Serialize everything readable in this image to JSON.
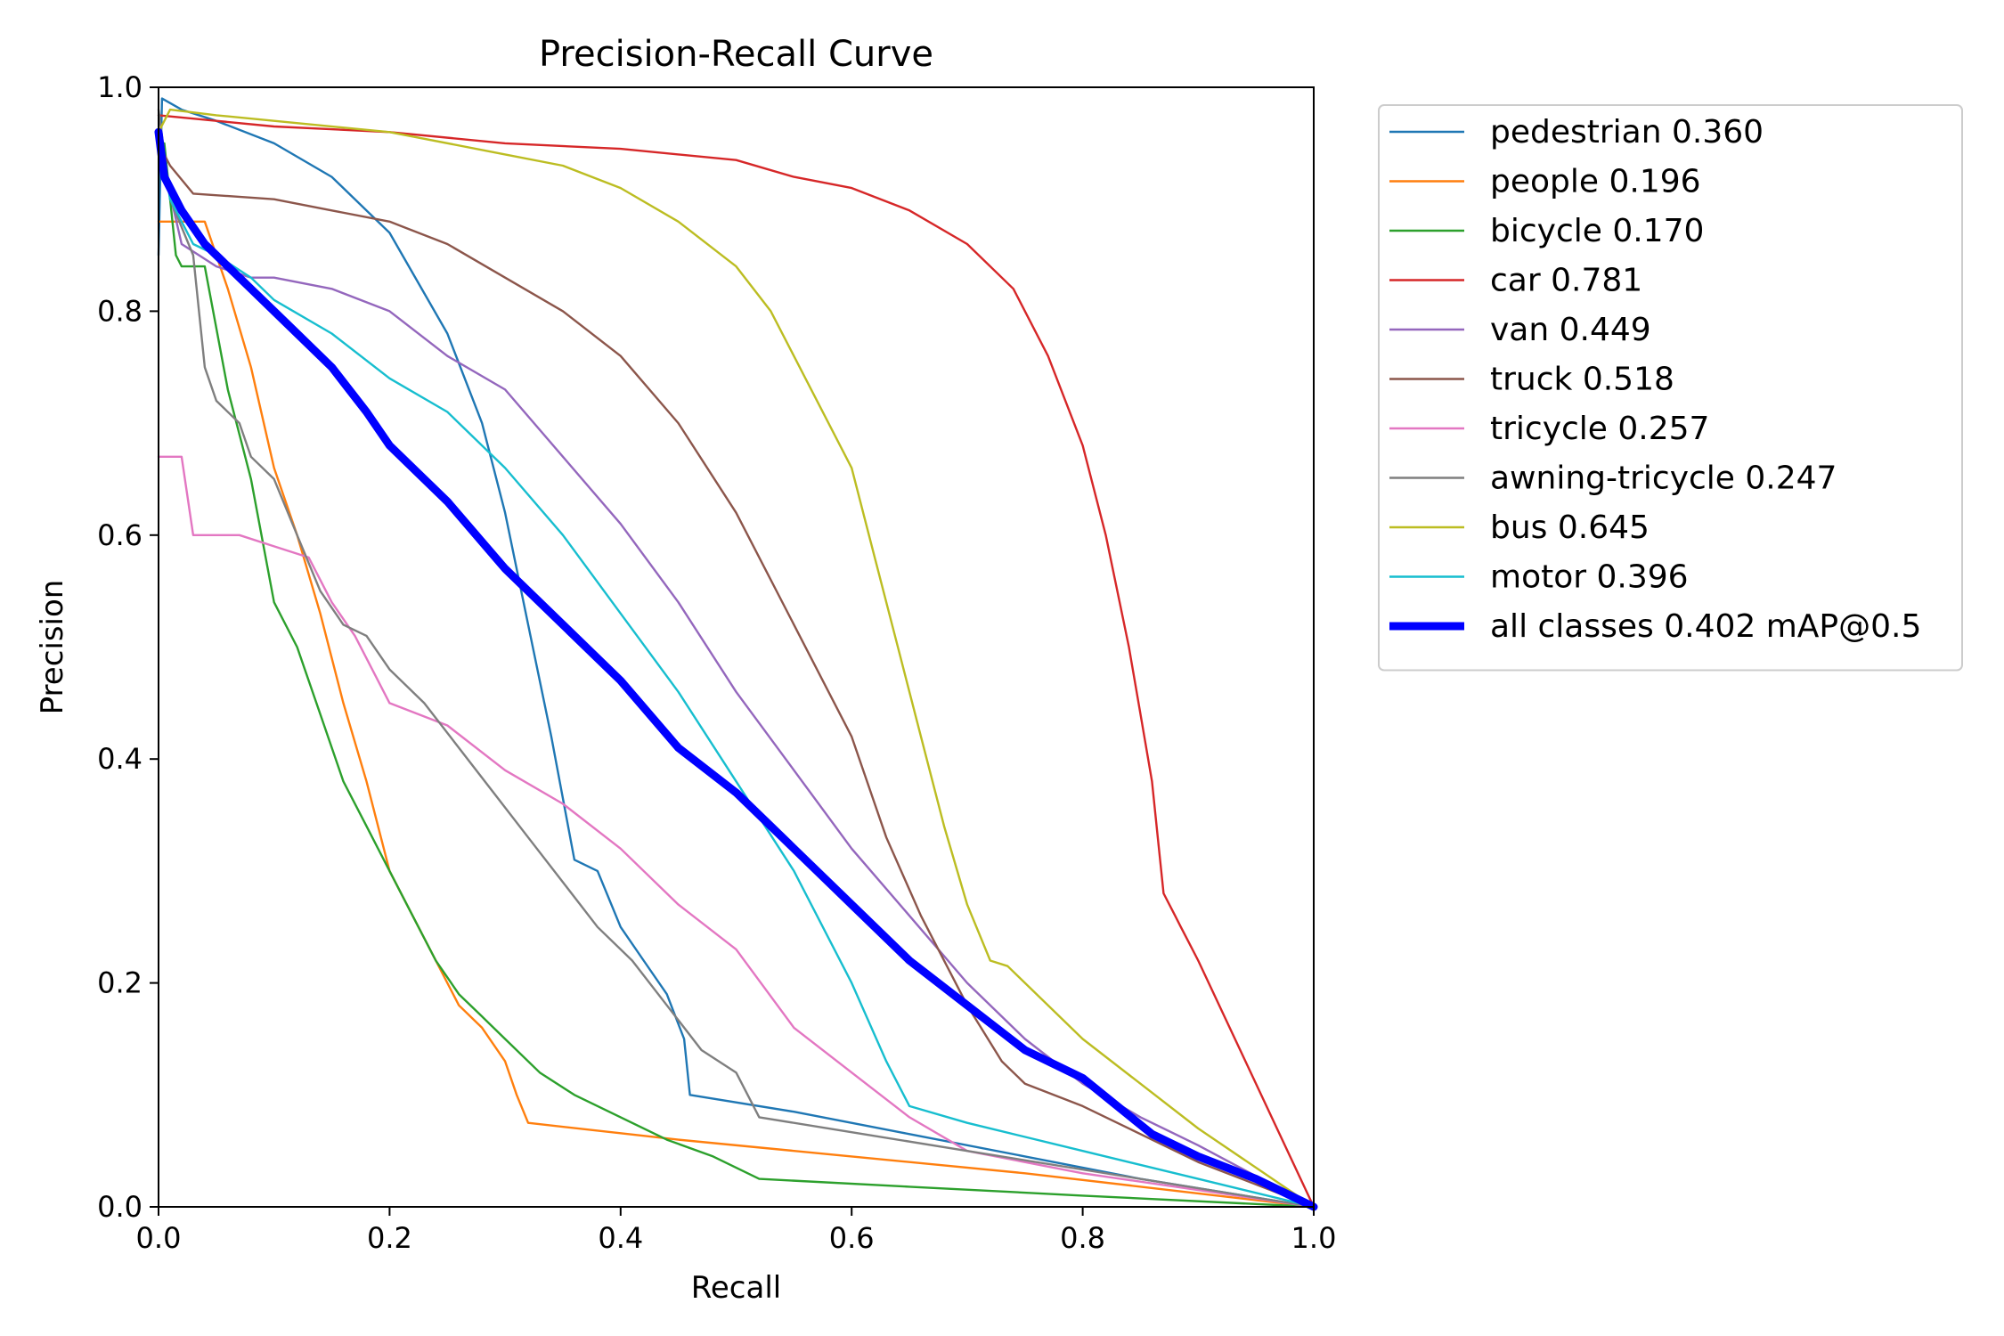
{
  "chart_data": {
    "type": "line",
    "title": "Precision-Recall Curve",
    "xlabel": "Recall",
    "ylabel": "Precision",
    "xlim": [
      0.0,
      1.0
    ],
    "ylim": [
      0.0,
      1.0
    ],
    "xticks": [
      "0.0",
      "0.2",
      "0.4",
      "0.6",
      "0.8",
      "1.0"
    ],
    "yticks": [
      "0.0",
      "0.2",
      "0.4",
      "0.6",
      "0.8",
      "1.0"
    ],
    "grid": false,
    "legend_position": "outside-right-top",
    "series": [
      {
        "name": "pedestrian 0.360",
        "label": "pedestrian 0.360",
        "color": "#1f77b4",
        "bold": false,
        "x": [
          0.0,
          0.003,
          0.02,
          0.05,
          0.1,
          0.15,
          0.2,
          0.25,
          0.28,
          0.3,
          0.32,
          0.34,
          0.36,
          0.38,
          0.4,
          0.42,
          0.44,
          0.455,
          0.46,
          0.55,
          0.65,
          0.75,
          0.85,
          1.0
        ],
        "y": [
          0.85,
          0.99,
          0.98,
          0.97,
          0.95,
          0.92,
          0.87,
          0.78,
          0.7,
          0.62,
          0.52,
          0.42,
          0.31,
          0.3,
          0.25,
          0.22,
          0.19,
          0.15,
          0.1,
          0.085,
          0.065,
          0.045,
          0.025,
          0.0
        ]
      },
      {
        "name": "people 0.196",
        "label": "people 0.196",
        "color": "#ff7f0e",
        "bold": false,
        "x": [
          0.0,
          0.01,
          0.04,
          0.06,
          0.08,
          0.1,
          0.12,
          0.14,
          0.16,
          0.18,
          0.2,
          0.22,
          0.24,
          0.26,
          0.28,
          0.3,
          0.31,
          0.32,
          0.45,
          0.6,
          0.75,
          0.9,
          1.0
        ],
        "y": [
          0.88,
          0.88,
          0.88,
          0.82,
          0.75,
          0.66,
          0.6,
          0.53,
          0.45,
          0.38,
          0.3,
          0.26,
          0.22,
          0.18,
          0.16,
          0.13,
          0.1,
          0.075,
          0.06,
          0.045,
          0.03,
          0.012,
          0.0
        ]
      },
      {
        "name": "bicycle 0.170",
        "label": "bicycle 0.170",
        "color": "#2ca02c",
        "bold": false,
        "x": [
          0.0,
          0.005,
          0.015,
          0.02,
          0.04,
          0.06,
          0.08,
          0.1,
          0.12,
          0.14,
          0.16,
          0.18,
          0.2,
          0.22,
          0.24,
          0.26,
          0.28,
          0.3,
          0.33,
          0.36,
          0.4,
          0.44,
          0.48,
          0.52,
          0.65,
          0.8,
          1.0
        ],
        "y": [
          0.95,
          0.95,
          0.85,
          0.84,
          0.84,
          0.73,
          0.65,
          0.54,
          0.5,
          0.44,
          0.38,
          0.34,
          0.3,
          0.26,
          0.22,
          0.19,
          0.17,
          0.15,
          0.12,
          0.1,
          0.08,
          0.06,
          0.045,
          0.025,
          0.018,
          0.01,
          0.0
        ]
      },
      {
        "name": "car 0.781",
        "label": "car 0.781",
        "color": "#d62728",
        "bold": false,
        "x": [
          0.0,
          0.05,
          0.1,
          0.2,
          0.3,
          0.4,
          0.5,
          0.55,
          0.6,
          0.65,
          0.7,
          0.74,
          0.77,
          0.8,
          0.82,
          0.84,
          0.85,
          0.86,
          0.865,
          0.87,
          0.88,
          0.885,
          0.89,
          0.9,
          1.0
        ],
        "y": [
          0.975,
          0.97,
          0.965,
          0.96,
          0.95,
          0.945,
          0.935,
          0.92,
          0.91,
          0.89,
          0.86,
          0.82,
          0.76,
          0.68,
          0.6,
          0.5,
          0.44,
          0.38,
          0.33,
          0.28,
          0.26,
          0.25,
          0.24,
          0.22,
          0.0
        ]
      },
      {
        "name": "van 0.449",
        "label": "van 0.449",
        "color": "#9467bd",
        "bold": false,
        "x": [
          0.0,
          0.02,
          0.05,
          0.08,
          0.1,
          0.15,
          0.2,
          0.25,
          0.3,
          0.35,
          0.4,
          0.45,
          0.5,
          0.55,
          0.6,
          0.65,
          0.7,
          0.75,
          0.8,
          0.85,
          0.9,
          1.0
        ],
        "y": [
          0.95,
          0.86,
          0.84,
          0.83,
          0.83,
          0.82,
          0.8,
          0.76,
          0.73,
          0.67,
          0.61,
          0.54,
          0.46,
          0.39,
          0.32,
          0.26,
          0.2,
          0.15,
          0.11,
          0.08,
          0.055,
          0.0
        ]
      },
      {
        "name": "truck 0.518",
        "label": "truck 0.518",
        "color": "#8c564b",
        "bold": false,
        "x": [
          0.0,
          0.01,
          0.03,
          0.1,
          0.15,
          0.2,
          0.25,
          0.3,
          0.35,
          0.4,
          0.45,
          0.5,
          0.55,
          0.6,
          0.63,
          0.66,
          0.7,
          0.73,
          0.75,
          0.8,
          0.9,
          1.0
        ],
        "y": [
          0.95,
          0.93,
          0.905,
          0.9,
          0.89,
          0.88,
          0.86,
          0.83,
          0.8,
          0.76,
          0.7,
          0.62,
          0.52,
          0.42,
          0.33,
          0.26,
          0.18,
          0.13,
          0.11,
          0.09,
          0.04,
          0.0
        ]
      },
      {
        "name": "tricycle 0.257",
        "label": "tricycle 0.257",
        "color": "#e377c2",
        "bold": false,
        "x": [
          0.0,
          0.02,
          0.03,
          0.04,
          0.07,
          0.1,
          0.13,
          0.15,
          0.17,
          0.2,
          0.25,
          0.3,
          0.35,
          0.4,
          0.45,
          0.5,
          0.55,
          0.6,
          0.65,
          0.7,
          0.8,
          1.0
        ],
        "y": [
          0.67,
          0.67,
          0.6,
          0.6,
          0.6,
          0.59,
          0.58,
          0.54,
          0.51,
          0.45,
          0.43,
          0.39,
          0.36,
          0.32,
          0.27,
          0.23,
          0.16,
          0.12,
          0.08,
          0.05,
          0.03,
          0.0
        ]
      },
      {
        "name": "awning-tricycle 0.247",
        "label": "awning-tricycle 0.247",
        "color": "#7f7f7f",
        "bold": false,
        "x": [
          0.0,
          0.01,
          0.03,
          0.04,
          0.05,
          0.07,
          0.08,
          0.1,
          0.12,
          0.14,
          0.16,
          0.18,
          0.2,
          0.23,
          0.26,
          0.29,
          0.32,
          0.35,
          0.38,
          0.41,
          0.44,
          0.47,
          0.5,
          0.52,
          0.7,
          1.0
        ],
        "y": [
          0.98,
          0.9,
          0.85,
          0.75,
          0.72,
          0.7,
          0.67,
          0.65,
          0.6,
          0.55,
          0.52,
          0.51,
          0.48,
          0.45,
          0.41,
          0.37,
          0.33,
          0.29,
          0.25,
          0.22,
          0.18,
          0.14,
          0.12,
          0.08,
          0.05,
          0.0
        ]
      },
      {
        "name": "bus 0.645",
        "label": "bus 0.645",
        "color": "#bcbd22",
        "bold": false,
        "x": [
          0.0,
          0.01,
          0.05,
          0.1,
          0.2,
          0.3,
          0.35,
          0.4,
          0.45,
          0.5,
          0.53,
          0.56,
          0.6,
          0.62,
          0.64,
          0.66,
          0.68,
          0.7,
          0.72,
          0.735,
          0.8,
          0.9,
          1.0
        ],
        "y": [
          0.96,
          0.98,
          0.975,
          0.97,
          0.96,
          0.94,
          0.93,
          0.91,
          0.88,
          0.84,
          0.8,
          0.74,
          0.66,
          0.58,
          0.5,
          0.42,
          0.34,
          0.27,
          0.22,
          0.215,
          0.15,
          0.07,
          0.0
        ]
      },
      {
        "name": "motor 0.396",
        "label": "motor 0.396",
        "color": "#17becf",
        "bold": false,
        "x": [
          0.0,
          0.01,
          0.03,
          0.05,
          0.08,
          0.1,
          0.15,
          0.2,
          0.25,
          0.3,
          0.35,
          0.4,
          0.45,
          0.5,
          0.55,
          0.6,
          0.63,
          0.65,
          0.7,
          0.8,
          0.9,
          1.0
        ],
        "y": [
          0.96,
          0.9,
          0.86,
          0.85,
          0.83,
          0.81,
          0.78,
          0.74,
          0.71,
          0.66,
          0.6,
          0.53,
          0.46,
          0.38,
          0.3,
          0.2,
          0.13,
          0.09,
          0.075,
          0.05,
          0.025,
          0.0
        ]
      },
      {
        "name": "all classes 0.402 mAP@0.5",
        "label": "all classes 0.402 mAP@0.5",
        "color": "#0000ff",
        "bold": true,
        "x": [
          0.0,
          0.005,
          0.02,
          0.04,
          0.06,
          0.08,
          0.1,
          0.12,
          0.15,
          0.18,
          0.2,
          0.25,
          0.3,
          0.35,
          0.4,
          0.45,
          0.5,
          0.55,
          0.6,
          0.65,
          0.7,
          0.75,
          0.8,
          0.83,
          0.86,
          0.9,
          0.95,
          1.0
        ],
        "y": [
          0.96,
          0.92,
          0.89,
          0.86,
          0.84,
          0.82,
          0.8,
          0.78,
          0.75,
          0.71,
          0.68,
          0.63,
          0.57,
          0.52,
          0.47,
          0.41,
          0.37,
          0.32,
          0.27,
          0.22,
          0.18,
          0.14,
          0.115,
          0.09,
          0.065,
          0.045,
          0.025,
          0.0
        ]
      }
    ]
  }
}
